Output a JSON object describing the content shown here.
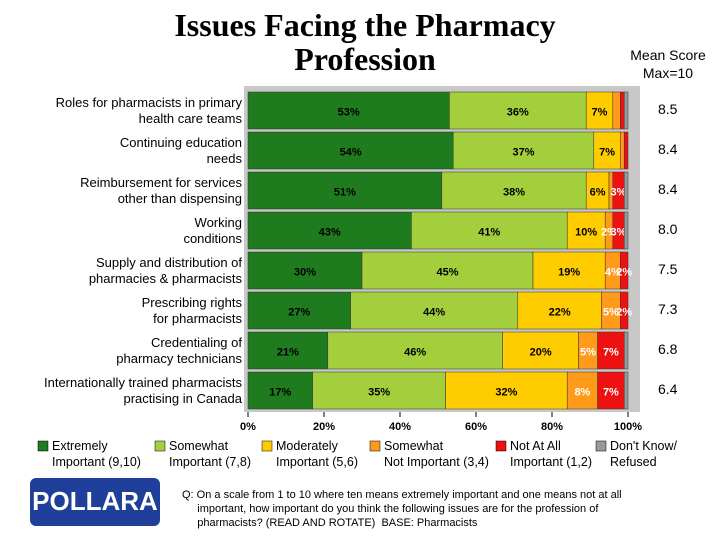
{
  "chart_data": {
    "type": "stacked-bar-horizontal",
    "title": "Issues Facing the Pharmacy\nProfession",
    "mean_score_header": "Mean Score\nMax=10",
    "categories": [
      "Roles for pharmacists in primary\nhealth care teams",
      "Continuing education\nneeds",
      "Reimbursement for services\nother than dispensing",
      "Working\nconditions",
      "Supply and distribution of\npharmacies & pharmacists",
      "Prescribing rights\nfor pharmacists",
      "Credentialing of\npharmacy technicians",
      "Internationally trained pharmacists\npractising in Canada"
    ],
    "series": [
      {
        "name": "Extremely\nImportant (9,10)",
        "color": "#1e7b1e",
        "values": [
          53,
          54,
          51,
          43,
          30,
          27,
          21,
          17
        ],
        "value_labels": [
          "53%",
          "54%",
          "51%",
          "43%",
          "30%",
          "27%",
          "21%",
          "17%"
        ]
      },
      {
        "name": "Somewhat\nImportant (7,8)",
        "color": "#a3cf3c",
        "values": [
          36,
          37,
          38,
          41,
          45,
          44,
          46,
          35
        ],
        "value_labels": [
          "36%",
          "37%",
          "38%",
          "41%",
          "45%",
          "44%",
          "46%",
          "35%"
        ]
      },
      {
        "name": "Moderately\nImportant (5,6)",
        "color": "#ffcc00",
        "values": [
          7,
          7,
          6,
          10,
          19,
          22,
          20,
          32
        ],
        "value_labels": [
          "7%",
          "7%",
          "6%",
          "10%",
          "19%",
          "22%",
          "20%",
          "32%"
        ]
      },
      {
        "name": "Somewhat\nNot Important (3,4)",
        "color": "#ff9a1a",
        "values": [
          2,
          1,
          1,
          2,
          4,
          5,
          5,
          8
        ],
        "value_labels": [
          null,
          null,
          null,
          "2%",
          "4%",
          "5%",
          "5%",
          "8%"
        ]
      },
      {
        "name": "Not At All\nImportant (1,2)",
        "color": "#ee1111",
        "values": [
          1,
          1,
          3,
          3,
          2,
          2,
          7,
          7
        ],
        "value_labels": [
          null,
          null,
          "3%",
          "3%",
          "2%",
          "2%",
          "7%",
          "7%"
        ]
      },
      {
        "name": "Don't Know/\nRefused",
        "color": "#999999",
        "values": [
          1,
          0,
          1,
          1,
          0,
          0,
          1,
          1
        ]
      }
    ],
    "mean_scores": [
      8.5,
      8.4,
      8.4,
      8,
      7.5,
      7.3,
      6.8,
      6.4
    ],
    "mean_score_labels": [
      "8.5",
      "8.4",
      "8.4",
      "8.0",
      "7.5",
      "7.3",
      "6.8",
      "6.4"
    ],
    "xlim": [
      0,
      100
    ],
    "xticks": [
      {
        "value": 0,
        "label": "0%"
      },
      {
        "value": 20,
        "label": "20%"
      },
      {
        "value": 40,
        "label": "40%"
      },
      {
        "value": 60,
        "label": "60%"
      },
      {
        "value": 80,
        "label": "80%"
      },
      {
        "value": 100,
        "label": "100%"
      }
    ],
    "footnote": "Q: On a scale from 1 to 10 where ten means extremely important and one means not at all\n     important, how important do you think the following issues are for the profession of\n     pharmacists? (READ AND ROTATE)  BASE: Pharmacists",
    "logo": "POLLARA"
  }
}
